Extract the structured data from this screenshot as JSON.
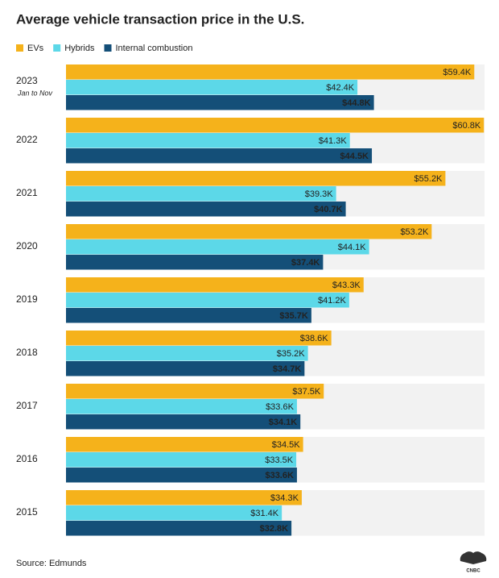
{
  "chart_data": {
    "type": "bar",
    "orientation": "horizontal",
    "title": "Average vehicle transaction price in the U.S.",
    "categories": [
      "2023",
      "2022",
      "2021",
      "2020",
      "2019",
      "2018",
      "2017",
      "2016",
      "2015"
    ],
    "category_notes": [
      "Jan to Nov",
      null,
      null,
      null,
      null,
      null,
      null,
      null,
      null
    ],
    "series": [
      {
        "name": "EVs",
        "color": "#f5b21b",
        "values": [
          59.4,
          60.8,
          55.2,
          53.2,
          43.3,
          38.6,
          37.5,
          34.5,
          34.3
        ],
        "value_labels": [
          "$59.4K",
          "$60.8K",
          "$55.2K",
          "$53.2K",
          "$43.3K",
          "$38.6K",
          "$37.5K",
          "$34.5K",
          "$34.3K"
        ]
      },
      {
        "name": "Hybrids",
        "color": "#5cd8e8",
        "values": [
          42.4,
          41.3,
          39.3,
          44.1,
          41.2,
          35.2,
          33.6,
          33.5,
          31.4
        ],
        "value_labels": [
          "$42.4K",
          "$41.3K",
          "$39.3K",
          "$44.1K",
          "$41.2K",
          "$35.2K",
          "$33.6K",
          "$33.5K",
          "$31.4K"
        ]
      },
      {
        "name": "Internal combustion",
        "color": "#144f78",
        "values": [
          44.8,
          44.5,
          40.7,
          37.4,
          35.7,
          34.7,
          34.1,
          33.6,
          32.8
        ],
        "value_labels": [
          "$44.8K",
          "$44.5K",
          "$40.7K",
          "$37.4K",
          "$35.7K",
          "$34.7K",
          "$34.1K",
          "$33.6K",
          "$32.8K"
        ]
      }
    ],
    "source": "Source: Edmunds",
    "logo_text": "CNBC"
  }
}
